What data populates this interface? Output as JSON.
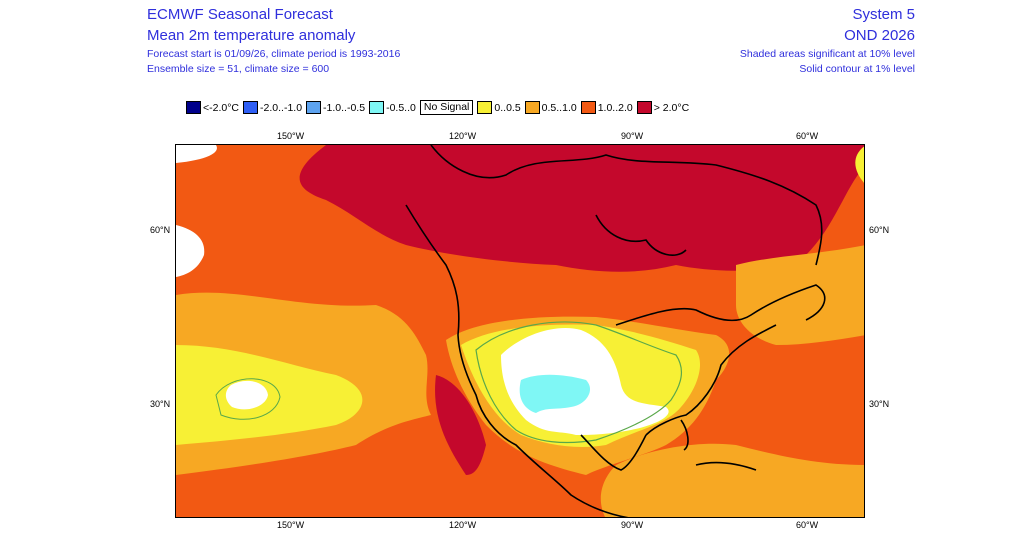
{
  "header": {
    "title": "ECMWF Seasonal Forecast",
    "subtitle": "Mean 2m temperature anomaly",
    "forecast_info": "Forecast start is 01/09/26, climate period is 1993-2016",
    "ensemble_info": "Ensemble size = 51, climate size = 600",
    "system": "System 5",
    "season": "OND 2026",
    "significance_note": "Shaded areas significant at 10% level",
    "contour_note": "Solid contour at 1% level"
  },
  "legend": [
    {
      "label": "<-2.0°C",
      "color": "#00008b"
    },
    {
      "label": "-2.0..-1.0",
      "color": "#2f5ff5"
    },
    {
      "label": "-1.0..-0.5",
      "color": "#5da3f0"
    },
    {
      "label": "-0.5..0",
      "color": "#7ff7f5"
    },
    {
      "label": "No Signal",
      "color": "#ffffff"
    },
    {
      "label": "0..0.5",
      "color": "#f7f035"
    },
    {
      "label": "0.5..1.0",
      "color": "#f7a823"
    },
    {
      "label": "1.0..2.0",
      "color": "#f25913"
    },
    {
      "label": "> 2.0°C",
      "color": "#c4082c"
    }
  ],
  "axes": {
    "lon_labels": [
      "150°W",
      "120°W",
      "90°W",
      "60°W"
    ],
    "lat_labels": [
      "60°N",
      "30°N"
    ]
  },
  "colors": {
    "text_blue": "#2f2fdc",
    "contour_green": "#5aa84a",
    "coast": "#000000"
  }
}
